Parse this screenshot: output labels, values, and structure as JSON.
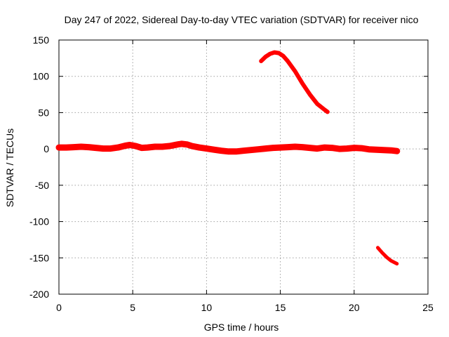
{
  "chart_data": {
    "type": "line",
    "title": "Day 247 of 2022, Sidereal Day-to-day VTEC variation (SDTVAR) for receiver nico",
    "xlabel": "GPS time / hours",
    "ylabel": "SDTVAR / TECUs",
    "xlim": [
      0,
      25
    ],
    "ylim": [
      -200,
      150
    ],
    "xticks": [
      0,
      5,
      10,
      15,
      20,
      25
    ],
    "yticks": [
      150,
      100,
      50,
      0,
      -50,
      -100,
      -150,
      -200
    ],
    "grid": true,
    "legend": "none",
    "series_color": "#ff0000",
    "series": [
      {
        "name": "main",
        "x": [
          0,
          0.5,
          1,
          1.5,
          2,
          2.5,
          3,
          3.5,
          4,
          4.5,
          4.8,
          5.2,
          5.6,
          6,
          6.5,
          7,
          7.5,
          8,
          8.3,
          8.7,
          9,
          9.5,
          10,
          10.5,
          11,
          11.5,
          12,
          12.5,
          13,
          13.5,
          14,
          14.5,
          15,
          15.5,
          16,
          16.5,
          17,
          17.5,
          18,
          18.5,
          19,
          19.5,
          20,
          20.5,
          21,
          21.5,
          22,
          22.5,
          22.9
        ],
        "y": [
          2,
          2,
          2.5,
          3,
          2.5,
          1.5,
          0.5,
          0.5,
          2,
          4.5,
          5.5,
          4,
          1.5,
          2,
          3,
          3,
          4,
          6,
          7,
          6,
          4,
          2,
          0.5,
          -1,
          -2.5,
          -3.5,
          -3.5,
          -2.5,
          -1.5,
          -0.5,
          0.5,
          1.5,
          2,
          2.5,
          3,
          2.5,
          1.5,
          0.5,
          2,
          1.5,
          0,
          0.5,
          1.5,
          1,
          -0.5,
          -1,
          -1.5,
          -2,
          -3
        ]
      },
      {
        "name": "upper arc",
        "x": [
          13.7,
          14,
          14.3,
          14.6,
          14.9,
          15.2,
          15.5,
          16,
          16.5,
          17,
          17.5,
          18,
          18.2
        ],
        "y": [
          121,
          127,
          131,
          133,
          132,
          128,
          121,
          107,
          90,
          75,
          62,
          54,
          51
        ]
      },
      {
        "name": "lower tail",
        "x": [
          21.6,
          21.9,
          22.2,
          22.5,
          22.9
        ],
        "y": [
          -136,
          -143,
          -149,
          -154,
          -158
        ]
      }
    ]
  }
}
